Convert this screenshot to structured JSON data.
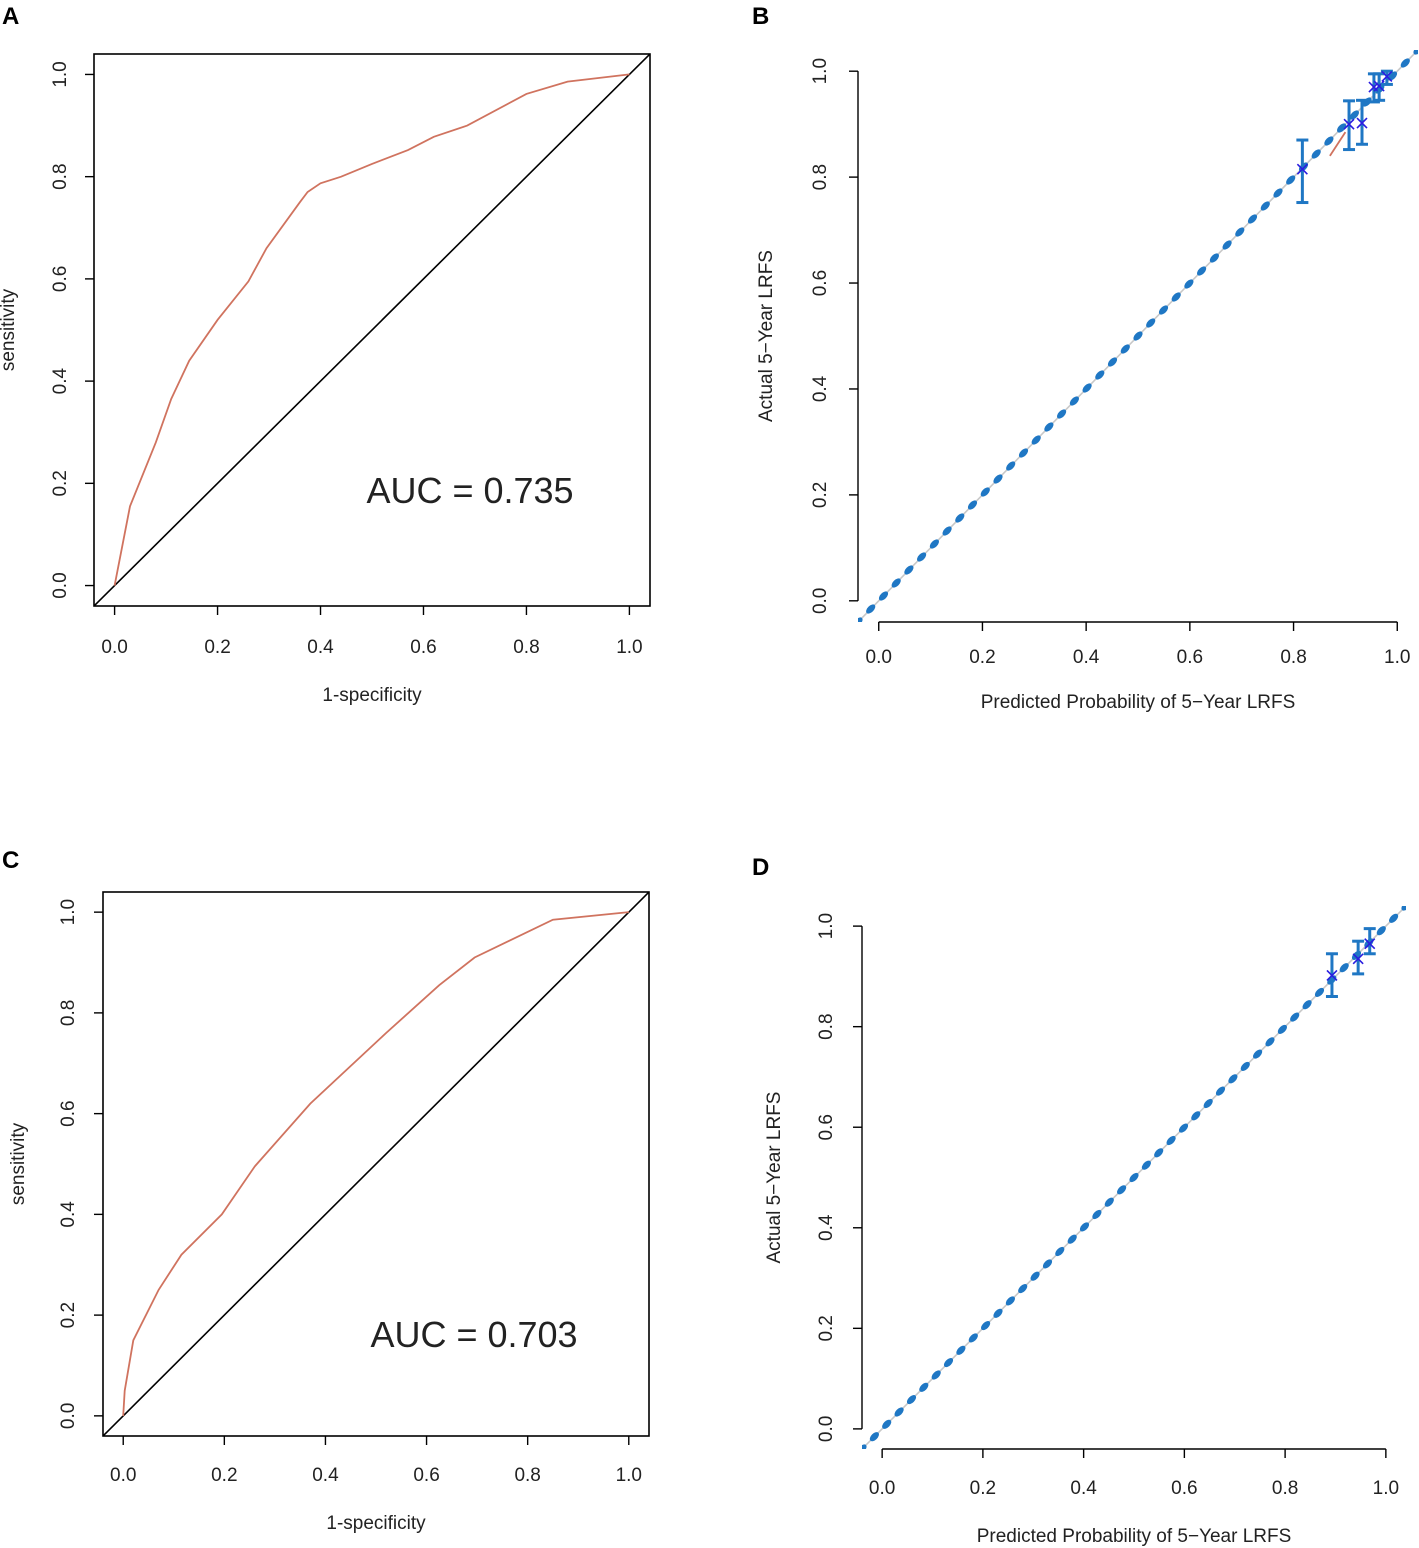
{
  "colors": {
    "roc_curve": "#d0735f",
    "diagonal": "#000000",
    "ideal_line": "#c8c8c8",
    "dots": "#1f77c4",
    "cross": "#2a1de0",
    "error_bar": "#1f77c4",
    "apparent": "#d0735f"
  },
  "panels": {
    "A": {
      "letter": "A",
      "chart_data": {
        "type": "line",
        "kind": "roc",
        "title": "",
        "xlabel": "1-specificity",
        "ylabel": "sensitivity",
        "xlim": [
          -0.04,
          1.04
        ],
        "ylim": [
          -0.04,
          1.04
        ],
        "xticks": [
          "0.0",
          "0.2",
          "0.4",
          "0.6",
          "0.8",
          "1.0"
        ],
        "yticks": [
          "0.0",
          "0.2",
          "0.4",
          "0.6",
          "0.8",
          "1.0"
        ],
        "annotation": "AUC = 0.735",
        "series": [
          {
            "name": "roc",
            "x": [
              0.0,
              0.03,
              0.08,
              0.11,
              0.145,
              0.2,
              0.26,
              0.295,
              0.36,
              0.375,
              0.4,
              0.44,
              0.5,
              0.57,
              0.62,
              0.685,
              0.8,
              0.88,
              1.0
            ],
            "y": [
              0.0,
              0.155,
              0.28,
              0.365,
              0.44,
              0.52,
              0.595,
              0.66,
              0.75,
              0.77,
              0.787,
              0.8,
              0.825,
              0.852,
              0.878,
              0.9,
              0.962,
              0.986,
              1.0
            ]
          },
          {
            "name": "reference",
            "x": [
              -0.04,
              1.04
            ],
            "y": [
              -0.04,
              1.04
            ]
          }
        ]
      }
    },
    "B": {
      "letter": "B",
      "chart_data": {
        "type": "scatter",
        "kind": "calibration",
        "title": "",
        "xlabel": "Predicted Probability of 5−Year LRFS",
        "ylabel": "Actual 5−Year LRFS",
        "xlim": [
          -0.04,
          1.04
        ],
        "ylim": [
          -0.04,
          1.04
        ],
        "xticks": [
          "0.0",
          "0.2",
          "0.4",
          "0.6",
          "0.8",
          "1.0"
        ],
        "yticks": [
          "0.0",
          "0.2",
          "0.4",
          "0.6",
          "0.8",
          "1.0"
        ],
        "series": [
          {
            "name": "observed",
            "x": [
              0.817,
              0.907,
              0.932,
              0.955,
              0.965,
              0.98
            ],
            "y": [
              0.815,
              0.9,
              0.902,
              0.97,
              0.972,
              0.99
            ],
            "lower": [
              0.752,
              0.852,
              0.862,
              0.942,
              0.945,
              0.975
            ],
            "upper": [
              0.87,
              0.944,
              0.945,
              0.995,
              0.995,
              1.0
            ]
          },
          {
            "name": "apparent",
            "x": [
              0.87,
              0.9
            ],
            "y": [
              0.84,
              0.885
            ]
          }
        ]
      }
    },
    "C": {
      "letter": "C",
      "chart_data": {
        "type": "line",
        "kind": "roc",
        "title": "",
        "xlabel": "1-specificity",
        "ylabel": "sensitivity",
        "xlim": [
          -0.04,
          1.04
        ],
        "ylim": [
          -0.04,
          1.04
        ],
        "xticks": [
          "0.0",
          "0.2",
          "0.4",
          "0.6",
          "0.8",
          "1.0"
        ],
        "yticks": [
          "0.0",
          "0.2",
          "0.4",
          "0.6",
          "0.8",
          "1.0"
        ],
        "annotation": "AUC = 0.703",
        "series": [
          {
            "name": "roc",
            "x": [
              0.0,
              0.003,
              0.02,
              0.07,
              0.115,
              0.195,
              0.26,
              0.37,
              0.52,
              0.625,
              0.695,
              0.85,
              1.0
            ],
            "y": [
              0.0,
              0.05,
              0.15,
              0.25,
              0.32,
              0.4,
              0.495,
              0.62,
              0.76,
              0.855,
              0.91,
              0.985,
              1.0
            ]
          },
          {
            "name": "reference",
            "x": [
              -0.04,
              1.04
            ],
            "y": [
              -0.04,
              1.04
            ]
          }
        ]
      }
    },
    "D": {
      "letter": "D",
      "chart_data": {
        "type": "scatter",
        "kind": "calibration",
        "title": "",
        "xlabel": "Predicted Probability of 5−Year LRFS",
        "ylabel": "Actual 5−Year LRFS",
        "xlim": [
          -0.04,
          1.04
        ],
        "ylim": [
          -0.04,
          1.04
        ],
        "xticks": [
          "0.0",
          "0.2",
          "0.4",
          "0.6",
          "0.8",
          "1.0"
        ],
        "yticks": [
          "0.0",
          "0.2",
          "0.4",
          "0.6",
          "0.8",
          "1.0"
        ],
        "series": [
          {
            "name": "observed",
            "x": [
              0.893,
              0.945,
              0.968
            ],
            "y": [
              0.902,
              0.935,
              0.965
            ],
            "lower": [
              0.86,
              0.905,
              0.945
            ],
            "upper": [
              0.945,
              0.97,
              0.995
            ]
          }
        ]
      }
    }
  }
}
